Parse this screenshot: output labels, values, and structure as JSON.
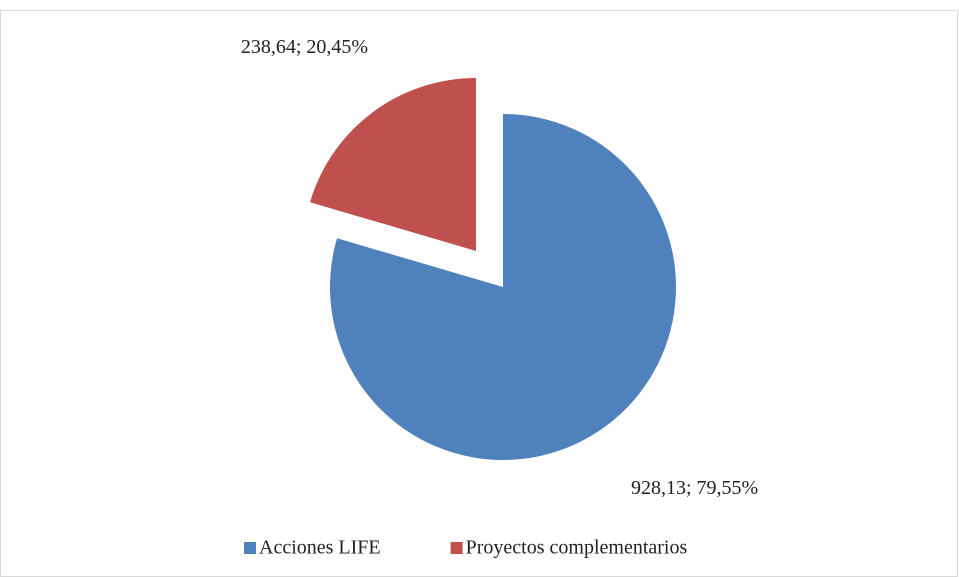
{
  "chart_data": {
    "type": "pie",
    "categories": [
      "Acciones LIFE",
      "Proyectos complementarios"
    ],
    "values": [
      928.13,
      238.64
    ],
    "value_labels": [
      "928,13; 79,55%",
      "238,64; 20,45%"
    ],
    "colors": [
      "#4f81bd",
      "#c0504d"
    ],
    "exploded": [
      false,
      true
    ],
    "legend": "bottom"
  }
}
